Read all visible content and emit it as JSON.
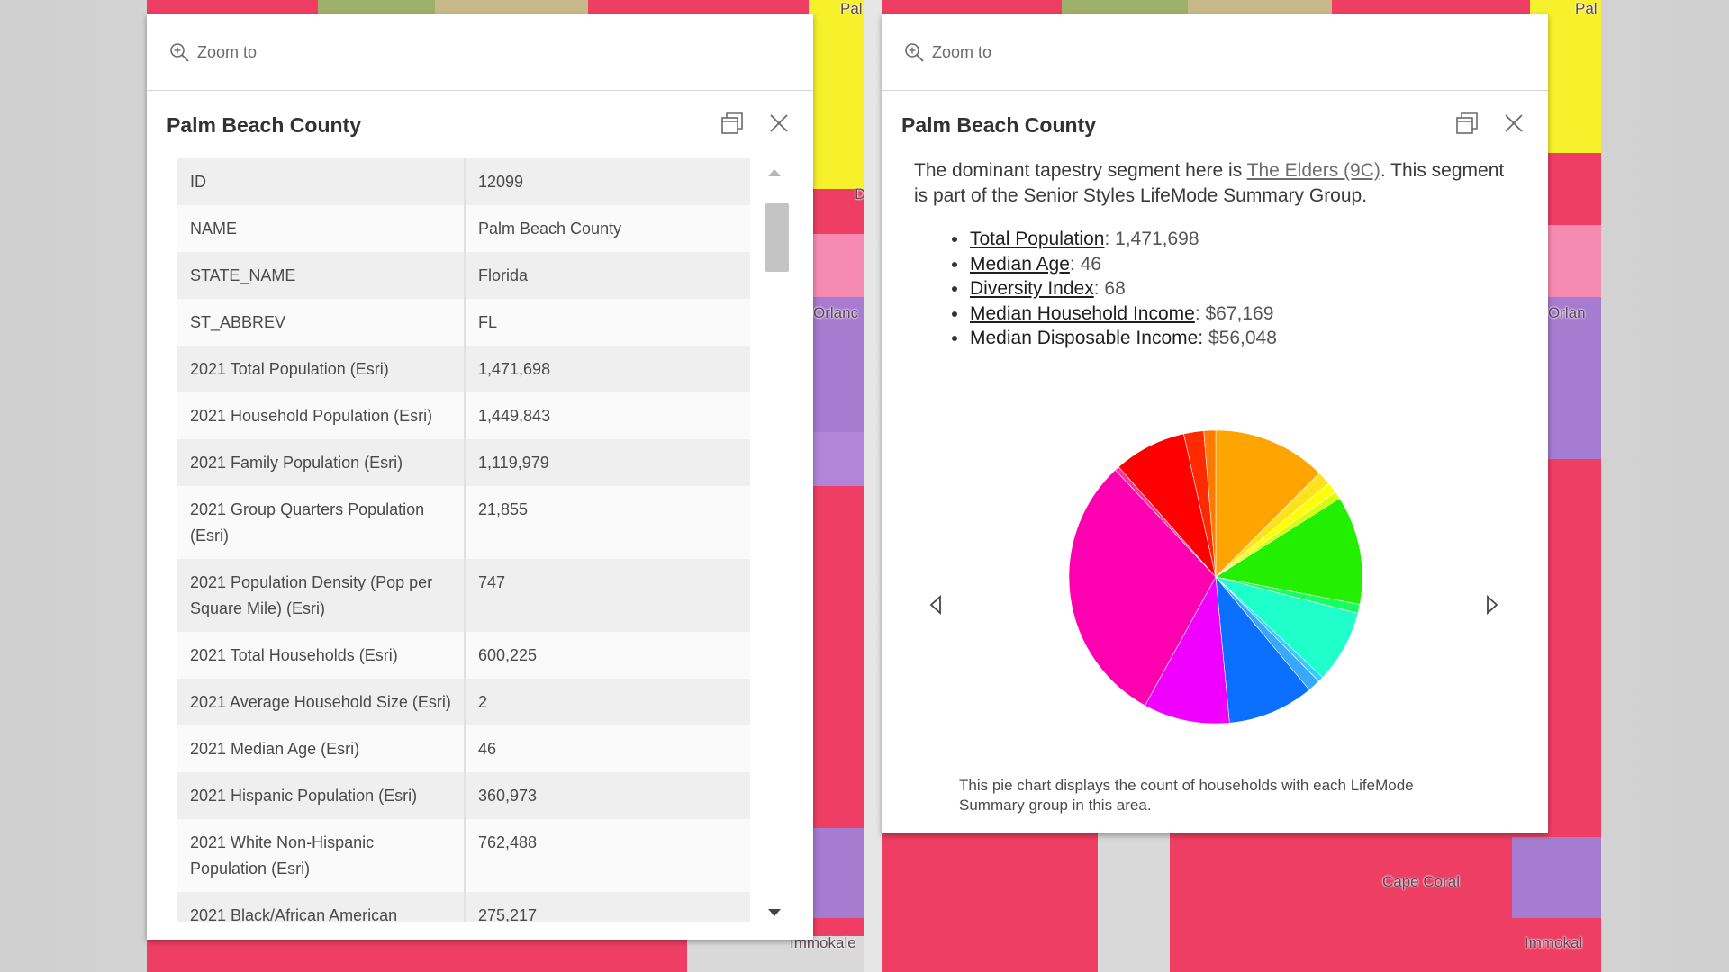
{
  "map": {
    "labels_left": [
      "Pal",
      "D",
      "Orlanc",
      "Immokale"
    ],
    "labels_right": [
      "Pal",
      "Orlan",
      "Cape Coral",
      "Immokal"
    ]
  },
  "left_panel": {
    "zoom_label": "Zoom to",
    "title": "Palm Beach County",
    "rows": [
      {
        "key": "ID",
        "value": "12099"
      },
      {
        "key": "NAME",
        "value": "Palm Beach County"
      },
      {
        "key": "STATE_NAME",
        "value": "Florida"
      },
      {
        "key": "ST_ABBREV",
        "value": "FL"
      },
      {
        "key": "2021 Total Population (Esri)",
        "value": "1,471,698"
      },
      {
        "key": "2021 Household Population (Esri)",
        "value": "1,449,843"
      },
      {
        "key": "2021 Family Population (Esri)",
        "value": "1,119,979"
      },
      {
        "key": "2021 Group Quarters Population (Esri)",
        "value": "21,855"
      },
      {
        "key": "2021 Population Density (Pop per Square Mile) (Esri)",
        "value": "747"
      },
      {
        "key": "2021 Total Households (Esri)",
        "value": "600,225"
      },
      {
        "key": "2021 Average Household Size (Esri)",
        "value": "2"
      },
      {
        "key": "2021 Median Age (Esri)",
        "value": "46"
      },
      {
        "key": "2021 Hispanic Population (Esri)",
        "value": "360,973"
      },
      {
        "key": "2021 White Non-Hispanic Population (Esri)",
        "value": "762,488"
      },
      {
        "key": "2021 Black/African American",
        "value": "275,217"
      }
    ]
  },
  "right_panel": {
    "zoom_label": "Zoom to",
    "title": "Palm Beach County",
    "intro_before": "The dominant tapestry segment here is ",
    "intro_link": "The Elders (9C)",
    "intro_after": ". This segment is part of the Senior Styles LifeMode Summary Group.",
    "stats": [
      {
        "label": "Total Population",
        "value": ": 1,471,698"
      },
      {
        "label": "Median Age",
        "value": ": 46"
      },
      {
        "label": "Diversity Index",
        "value": ": 68"
      },
      {
        "label": "Median Household Income",
        "value": ": $67,169"
      },
      {
        "label": "Median Disposable Income:",
        "value": " $56,048"
      }
    ],
    "caption": "This pie chart displays the count of households with each LifeMode Summary group in this area."
  },
  "chart_data": {
    "type": "pie",
    "title": "",
    "series": [
      {
        "values": [
          12.5,
          1.5,
          1.2,
          0.8,
          12.0,
          1.0,
          8.0,
          0.6,
          1.4,
          9.5,
          9.5,
          30.0,
          0.5,
          8.0,
          2.2,
          1.3
        ]
      }
    ],
    "colors": [
      "#ffa500",
      "#ffe21a",
      "#ffff00",
      "#d6ff00",
      "#22f000",
      "#18ff60",
      "#1effcc",
      "#2fd0ff",
      "#38a8ff",
      "#0b6fff",
      "#f000ff",
      "#ff00b0",
      "#ff3399",
      "#ff0000",
      "#ff2a00",
      "#ff7a00"
    ]
  }
}
